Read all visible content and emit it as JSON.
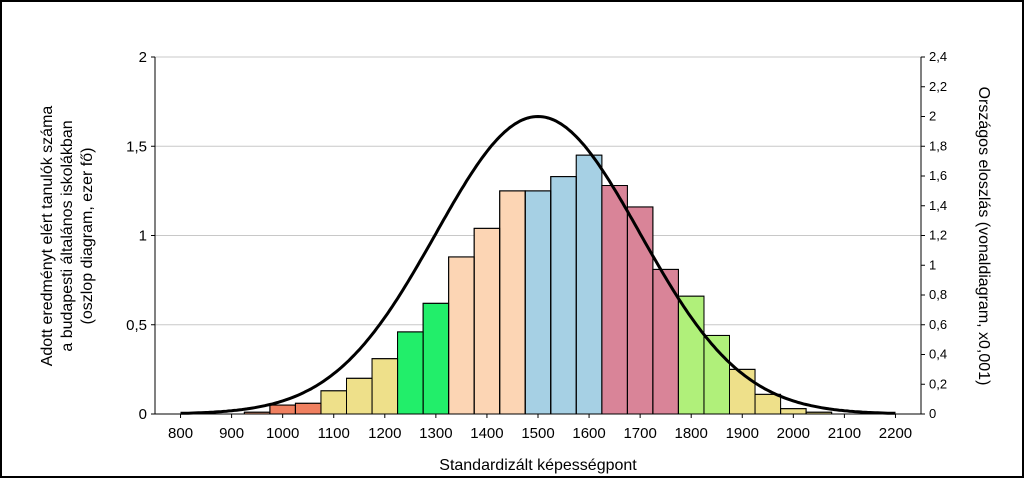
{
  "chart_data": {
    "type": "bar",
    "xlabel": "Standardizált képességpont",
    "ylabel_left_lines": [
      "Adott eredményt elért tanulók száma",
      "a budapesti általános iskolákban",
      "(oszlop diagram, ezer fő)"
    ],
    "ylabel_right": "Országos eloszlás (vonaldiagram, x0,001)",
    "xlim": [
      750,
      2250
    ],
    "ylim_left": [
      0,
      2
    ],
    "ylim_right": [
      0,
      2.4
    ],
    "x_ticks": [
      800,
      900,
      1000,
      1100,
      1200,
      1300,
      1400,
      1500,
      1600,
      1700,
      1800,
      1900,
      2000,
      2100,
      2200
    ],
    "y_ticks_left": [
      "0",
      "0,5",
      "1",
      "1,5",
      "2"
    ],
    "y_ticks_left_values": [
      0,
      0.5,
      1,
      1.5,
      2
    ],
    "y_ticks_right": [
      "0",
      "0,2",
      "0,4",
      "0,6",
      "0,8",
      "1",
      "1,2",
      "1,4",
      "1,6",
      "1,8",
      "2",
      "2,2",
      "2,4"
    ],
    "y_ticks_right_values": [
      0,
      0.2,
      0.4,
      0.6,
      0.8,
      1,
      1.2,
      1.4,
      1.6,
      1.8,
      2,
      2.2,
      2.4
    ],
    "bin_width": 50,
    "bars": [
      {
        "x": 950,
        "value": 0.01,
        "color": "#f4a582"
      },
      {
        "x": 1000,
        "value": 0.05,
        "color": "#f08060"
      },
      {
        "x": 1050,
        "value": 0.06,
        "color": "#f08060"
      },
      {
        "x": 1100,
        "value": 0.13,
        "color": "#eee08a"
      },
      {
        "x": 1150,
        "value": 0.2,
        "color": "#eee08a"
      },
      {
        "x": 1200,
        "value": 0.31,
        "color": "#eee08a"
      },
      {
        "x": 1250,
        "value": 0.46,
        "color": "#22ee6a"
      },
      {
        "x": 1300,
        "value": 0.62,
        "color": "#22ee6a"
      },
      {
        "x": 1350,
        "value": 0.88,
        "color": "#fcd5b4"
      },
      {
        "x": 1400,
        "value": 1.04,
        "color": "#fcd5b4"
      },
      {
        "x": 1450,
        "value": 1.25,
        "color": "#fcd5b4"
      },
      {
        "x": 1500,
        "value": 1.25,
        "color": "#a6d0e4"
      },
      {
        "x": 1550,
        "value": 1.33,
        "color": "#a6d0e4"
      },
      {
        "x": 1600,
        "value": 1.45,
        "color": "#a6d0e4"
      },
      {
        "x": 1650,
        "value": 1.28,
        "color": "#d98498"
      },
      {
        "x": 1700,
        "value": 1.16,
        "color": "#d98498"
      },
      {
        "x": 1750,
        "value": 0.81,
        "color": "#d98498"
      },
      {
        "x": 1800,
        "value": 0.66,
        "color": "#b0f07a"
      },
      {
        "x": 1850,
        "value": 0.44,
        "color": "#b0f07a"
      },
      {
        "x": 1900,
        "value": 0.25,
        "color": "#eee08a"
      },
      {
        "x": 1950,
        "value": 0.11,
        "color": "#eee08a"
      },
      {
        "x": 2000,
        "value": 0.03,
        "color": "#eee08a"
      },
      {
        "x": 2050,
        "value": 0.01,
        "color": "#eee08a"
      }
    ],
    "color_bands": [
      {
        "from": 1050,
        "to": 1075,
        "color": "#f08060"
      },
      {
        "from": 1075,
        "to": 1125,
        "color": "#eee08a"
      },
      {
        "from": 1225,
        "to": 1275,
        "color": "#22ee6a"
      },
      {
        "from": 1575,
        "to": 1625,
        "color": "#a6d0e4"
      },
      {
        "from": 1625,
        "to": 1675,
        "color": "#d98498"
      },
      {
        "from": 1775,
        "to": 1825,
        "color": "#b0f07a"
      },
      {
        "from": 1925,
        "to": 1975,
        "color": "#eee08a"
      }
    ],
    "curve": {
      "type": "normal",
      "mean": 1500,
      "sd": 200,
      "peak": 2.0,
      "axis": "right",
      "color": "#000000"
    },
    "grid": true
  }
}
